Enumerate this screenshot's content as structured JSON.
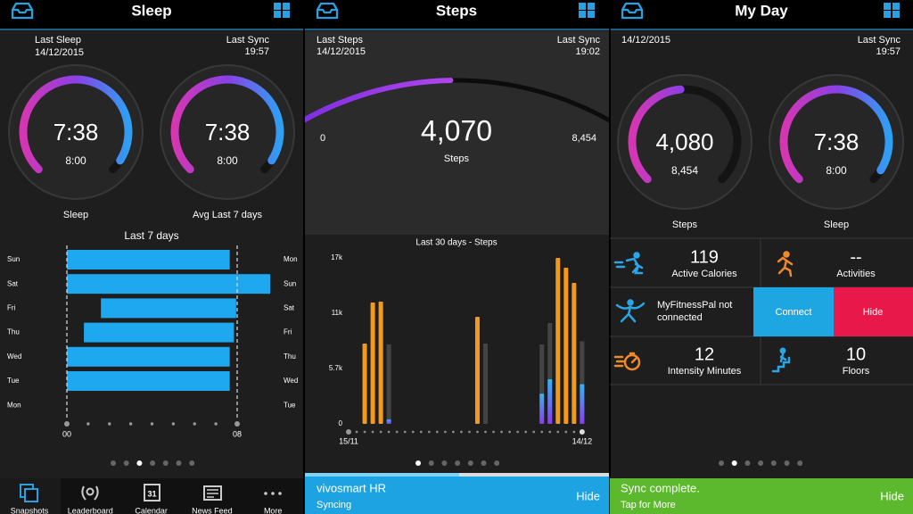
{
  "sleep": {
    "title": "Sleep",
    "left_info": [
      "Last Sleep",
      "14/12/2015"
    ],
    "right_info": [
      "Last Sync",
      "19:57"
    ],
    "gauges": [
      {
        "value": {
          "value": 458,
          "label": "7:38"
        },
        "goal": {
          "value": 480,
          "label": "8:00"
        },
        "label": "Sleep"
      },
      {
        "value": {
          "value": 458,
          "label": "7:38"
        },
        "goal": {
          "value": 480,
          "label": "8:00"
        },
        "label": "Avg Last 7 days"
      }
    ],
    "chart": {
      "title": "Last 7 days",
      "left_days": [
        "Sun",
        "Sat",
        "Fri",
        "Thu",
        "Wed",
        "Tue",
        "Mon"
      ],
      "right_days": [
        "Mon",
        "Sun",
        "Sat",
        "Fri",
        "Thu",
        "Wed",
        "Tue"
      ],
      "start": [
        0,
        0,
        1.6,
        0.8,
        0,
        0,
        null
      ],
      "end": [
        7.65,
        9.55,
        7.95,
        7.85,
        7.65,
        7.65,
        null
      ],
      "xlim": [
        0,
        10
      ],
      "xticks": [
        {
          "value": 0,
          "label": "00"
        },
        {
          "value": 8,
          "label": "08"
        }
      ],
      "minor_ticks": [
        1,
        2,
        3,
        4,
        5,
        6,
        7
      ],
      "color": "#1ea8f0"
    }
  },
  "steps": {
    "title": "Steps",
    "left_info": [
      "Last Steps",
      "14/12/2015"
    ],
    "right_info": [
      "Last Sync",
      "19:02"
    ],
    "progress": {
      "min": 0,
      "goal": {
        "value": 8454,
        "label": "8,454"
      },
      "value": {
        "value": 4070,
        "label": "4,070"
      },
      "label": "Steps"
    },
    "chart": {
      "title": "Last 30 days - Steps",
      "categories": [
        "15/11",
        null,
        null,
        null,
        null,
        null,
        null,
        null,
        null,
        null,
        null,
        null,
        null,
        null,
        null,
        null,
        null,
        null,
        null,
        null,
        null,
        null,
        null,
        null,
        null,
        null,
        null,
        null,
        null,
        "14/12"
      ],
      "steps": [
        null,
        null,
        8226,
        12430,
        12520,
        460,
        null,
        null,
        null,
        null,
        null,
        null,
        null,
        null,
        null,
        null,
        10968,
        null,
        null,
        null,
        null,
        null,
        null,
        null,
        3100,
        4570,
        17000,
        15995,
        14440,
        4070
      ],
      "goal": [
        null,
        null,
        null,
        null,
        null,
        8135,
        null,
        null,
        null,
        null,
        null,
        null,
        null,
        null,
        null,
        null,
        null,
        8226,
        null,
        null,
        null,
        null,
        null,
        null,
        8135,
        10330,
        null,
        null,
        null,
        8454
      ],
      "ylim": [
        0,
        17000
      ],
      "yticks": [
        0,
        {
          "value": 5667,
          "label": "5.7k"
        },
        {
          "value": 11333,
          "label": "11k"
        },
        {
          "value": 17000,
          "label": "17k"
        }
      ],
      "met_color": "#f39a1e",
      "goal_color": "#444444",
      "under_colors": [
        "#8a3cf0",
        "#35b4f0"
      ]
    },
    "banner": {
      "title": "vivosmart HR",
      "subtitle": "Syncing",
      "action": "Hide"
    }
  },
  "my_day": {
    "title": "My Day",
    "left_info": [
      "14/12/2015"
    ],
    "right_info": [
      "Last Sync",
      "19:57"
    ],
    "gauges": [
      {
        "value": {
          "value": 4080,
          "label": "4,080"
        },
        "goal": {
          "value": 8454,
          "label": "8,454"
        },
        "label": "Steps"
      },
      {
        "value": {
          "value": 458,
          "label": "7:38"
        },
        "goal": {
          "value": 480,
          "label": "8:00"
        },
        "label": "Sleep"
      }
    ],
    "tiles": [
      {
        "value": 119,
        "label": "Active Calories"
      },
      {
        "value": "--",
        "label": "Activities"
      },
      {
        "value": 12,
        "label": "Intensity Minutes"
      },
      {
        "value": 10,
        "label": "Floors"
      }
    ],
    "mfp": {
      "text": "MyFitnessPal not connected",
      "connect": "Connect",
      "hide": "Hide"
    },
    "banner": {
      "title": "Sync complete.",
      "subtitle": "Tap for More",
      "action": "Hide"
    }
  },
  "nav": {
    "items": [
      "Snapshots",
      "Leaderboard",
      "Calendar",
      "News Feed",
      "More"
    ],
    "calendar_day": 31
  }
}
